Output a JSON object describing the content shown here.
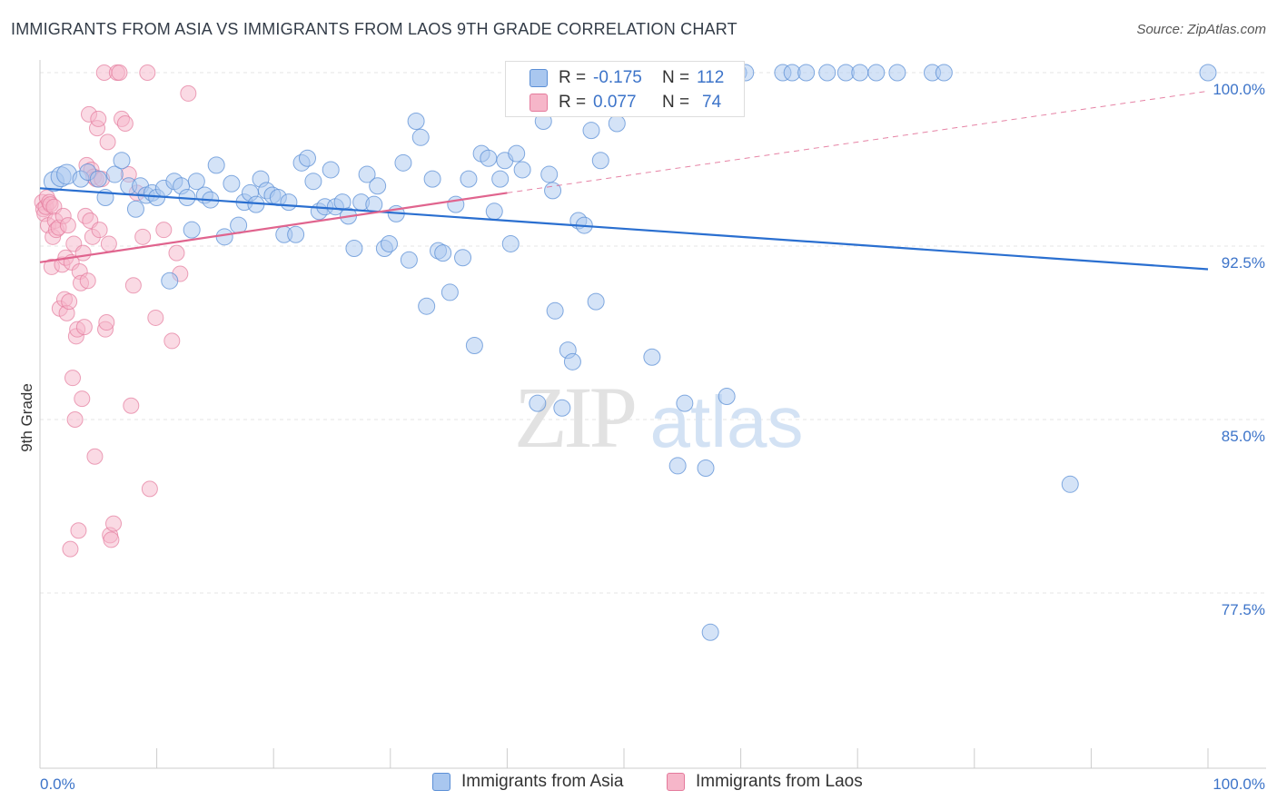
{
  "title": "IMMIGRANTS FROM ASIA VS IMMIGRANTS FROM LAOS 9TH GRADE CORRELATION CHART",
  "source": "Source: ZipAtlas.com",
  "watermark": {
    "zip": "ZIP",
    "atlas": "atlas"
  },
  "colors": {
    "asia_fill": "#a9c7ef",
    "asia_stroke": "#5b8fd6",
    "asia_line": "#2a6fd0",
    "laos_fill": "#f6b6c9",
    "laos_stroke": "#e47a9c",
    "laos_line": "#e0648e",
    "tick_label": "#3d74c9",
    "grid": "#e6e6e6"
  },
  "stats": {
    "r_label": "R =",
    "n_label": "N =",
    "asia": {
      "r": "-0.175",
      "n": "112"
    },
    "laos": {
      "r": "0.077",
      "n": "74"
    }
  },
  "legend": {
    "asia": "Immigrants from Asia",
    "laos": "Immigrants from Laos"
  },
  "chart_data": {
    "type": "scatter",
    "title": "IMMIGRANTS FROM ASIA VS IMMIGRANTS FROM LAOS 9TH GRADE CORRELATION CHART",
    "xlabel": "",
    "ylabel": "9th Grade",
    "xlim": [
      0,
      100
    ],
    "ylim": [
      71.0,
      101.5
    ],
    "x_tick_labels": [
      "0.0%",
      "100.0%"
    ],
    "y_ticks": [
      100.0,
      92.5,
      85.0,
      77.5
    ],
    "y_tick_labels": [
      "100.0%",
      "92.5%",
      "85.0%",
      "77.5%"
    ],
    "grid": true,
    "legend_position": "bottom-center",
    "series": [
      {
        "name": "Immigrants from Asia",
        "trend": {
          "x": [
            0,
            100
          ],
          "y": [
            95.0,
            91.5
          ],
          "dashed_extension": false
        },
        "points": [
          [
            1.2,
            95.3
          ],
          [
            1.8,
            95.5
          ],
          [
            2.3,
            95.6
          ],
          [
            3.5,
            95.4
          ],
          [
            4.1,
            95.7
          ],
          [
            5.0,
            95.4
          ],
          [
            5.6,
            94.6
          ],
          [
            6.4,
            95.6
          ],
          [
            7.0,
            96.2
          ],
          [
            7.6,
            95.1
          ],
          [
            8.2,
            94.1
          ],
          [
            8.6,
            95.1
          ],
          [
            9.1,
            94.7
          ],
          [
            9.6,
            94.8
          ],
          [
            10.0,
            94.6
          ],
          [
            10.6,
            95.0
          ],
          [
            11.1,
            91.0
          ],
          [
            11.5,
            95.3
          ],
          [
            12.1,
            95.1
          ],
          [
            12.6,
            94.6
          ],
          [
            13.0,
            93.2
          ],
          [
            13.4,
            95.3
          ],
          [
            14.1,
            94.7
          ],
          [
            14.6,
            94.5
          ],
          [
            15.1,
            96.0
          ],
          [
            15.8,
            92.9
          ],
          [
            16.4,
            95.2
          ],
          [
            17.0,
            93.4
          ],
          [
            17.5,
            94.4
          ],
          [
            18.0,
            94.8
          ],
          [
            18.5,
            94.3
          ],
          [
            18.9,
            95.4
          ],
          [
            19.4,
            94.9
          ],
          [
            19.9,
            94.7
          ],
          [
            20.4,
            94.6
          ],
          [
            20.9,
            93.0
          ],
          [
            21.3,
            94.4
          ],
          [
            21.9,
            93.0
          ],
          [
            22.4,
            96.1
          ],
          [
            22.9,
            96.3
          ],
          [
            23.4,
            95.3
          ],
          [
            23.9,
            94.0
          ],
          [
            24.4,
            94.2
          ],
          [
            24.9,
            95.8
          ],
          [
            25.3,
            94.2
          ],
          [
            25.9,
            94.4
          ],
          [
            26.4,
            93.8
          ],
          [
            26.9,
            92.4
          ],
          [
            27.5,
            94.4
          ],
          [
            28.0,
            95.6
          ],
          [
            28.6,
            94.3
          ],
          [
            28.9,
            95.1
          ],
          [
            29.5,
            92.4
          ],
          [
            29.9,
            92.6
          ],
          [
            30.5,
            93.9
          ],
          [
            31.1,
            96.1
          ],
          [
            31.6,
            91.9
          ],
          [
            32.2,
            97.9
          ],
          [
            32.6,
            97.2
          ],
          [
            33.1,
            89.9
          ],
          [
            33.6,
            95.4
          ],
          [
            34.1,
            92.3
          ],
          [
            34.5,
            92.2
          ],
          [
            35.1,
            90.5
          ],
          [
            35.6,
            94.3
          ],
          [
            36.2,
            92.0
          ],
          [
            36.7,
            95.4
          ],
          [
            37.2,
            88.2
          ],
          [
            37.8,
            96.5
          ],
          [
            38.4,
            96.3
          ],
          [
            38.9,
            94.0
          ],
          [
            39.4,
            95.4
          ],
          [
            39.8,
            96.2
          ],
          [
            40.3,
            92.6
          ],
          [
            40.8,
            96.5
          ],
          [
            41.3,
            95.8
          ],
          [
            42.6,
            85.7
          ],
          [
            43.1,
            97.9
          ],
          [
            43.6,
            95.6
          ],
          [
            43.9,
            94.9
          ],
          [
            44.1,
            89.7
          ],
          [
            44.7,
            85.5
          ],
          [
            45.2,
            88.0
          ],
          [
            45.6,
            87.5
          ],
          [
            46.1,
            93.6
          ],
          [
            46.6,
            93.4
          ],
          [
            47.2,
            97.5
          ],
          [
            47.6,
            90.1
          ],
          [
            48.0,
            96.2
          ],
          [
            49.4,
            97.8
          ],
          [
            50.4,
            100.0
          ],
          [
            52.4,
            87.7
          ],
          [
            52.8,
            99.0
          ],
          [
            52.2,
            100.0
          ],
          [
            54.6,
            83.0
          ],
          [
            55.2,
            85.7
          ],
          [
            56.2,
            99.1
          ],
          [
            57.0,
            82.9
          ],
          [
            57.4,
            75.8
          ],
          [
            58.8,
            86.0
          ],
          [
            59.8,
            100.0
          ],
          [
            60.4,
            100.0
          ],
          [
            63.6,
            100.0
          ],
          [
            64.4,
            100.0
          ],
          [
            65.6,
            100.0
          ],
          [
            67.4,
            100.0
          ],
          [
            69.0,
            100.0
          ],
          [
            70.2,
            100.0
          ],
          [
            71.6,
            100.0
          ],
          [
            73.4,
            100.0
          ],
          [
            76.4,
            100.0
          ],
          [
            77.4,
            100.0
          ],
          [
            88.2,
            82.2
          ],
          [
            100.0,
            100.0
          ]
        ]
      },
      {
        "name": "Immigrants from Laos",
        "trend": {
          "x": [
            0,
            40
          ],
          "y": [
            91.8,
            94.8
          ],
          "dashed_to": [
            100,
            99.2
          ]
        },
        "points": [
          [
            0.2,
            94.4
          ],
          [
            0.3,
            94.1
          ],
          [
            0.4,
            93.9
          ],
          [
            0.5,
            94.2
          ],
          [
            0.6,
            94.6
          ],
          [
            0.7,
            93.4
          ],
          [
            0.8,
            94.4
          ],
          [
            0.9,
            94.3
          ],
          [
            1.0,
            91.6
          ],
          [
            1.1,
            92.9
          ],
          [
            1.2,
            94.2
          ],
          [
            1.3,
            93.6
          ],
          [
            1.4,
            93.2
          ],
          [
            1.6,
            93.3
          ],
          [
            1.7,
            89.8
          ],
          [
            1.9,
            91.7
          ],
          [
            2.0,
            93.8
          ],
          [
            2.1,
            90.2
          ],
          [
            2.2,
            92.0
          ],
          [
            2.3,
            89.6
          ],
          [
            2.4,
            93.4
          ],
          [
            2.5,
            90.1
          ],
          [
            2.6,
            79.4
          ],
          [
            2.7,
            91.8
          ],
          [
            2.8,
            86.8
          ],
          [
            2.9,
            92.6
          ],
          [
            3.0,
            85.0
          ],
          [
            3.1,
            88.6
          ],
          [
            3.2,
            88.9
          ],
          [
            3.3,
            80.2
          ],
          [
            3.4,
            91.4
          ],
          [
            3.5,
            90.9
          ],
          [
            3.6,
            85.9
          ],
          [
            3.7,
            92.2
          ],
          [
            3.8,
            89.0
          ],
          [
            3.9,
            93.8
          ],
          [
            4.0,
            96.0
          ],
          [
            4.1,
            91.0
          ],
          [
            4.2,
            98.2
          ],
          [
            4.3,
            93.6
          ],
          [
            4.4,
            95.8
          ],
          [
            4.5,
            92.9
          ],
          [
            4.6,
            95.5
          ],
          [
            4.7,
            83.4
          ],
          [
            4.8,
            95.4
          ],
          [
            4.9,
            97.6
          ],
          [
            5.0,
            98.0
          ],
          [
            5.1,
            93.2
          ],
          [
            5.3,
            95.4
          ],
          [
            5.5,
            100.0
          ],
          [
            5.6,
            88.9
          ],
          [
            5.7,
            89.2
          ],
          [
            5.8,
            97.0
          ],
          [
            5.9,
            92.6
          ],
          [
            6.0,
            80.0
          ],
          [
            6.1,
            79.8
          ],
          [
            6.3,
            80.5
          ],
          [
            6.6,
            100.0
          ],
          [
            6.8,
            100.0
          ],
          [
            7.0,
            98.0
          ],
          [
            7.3,
            97.8
          ],
          [
            7.6,
            95.6
          ],
          [
            7.8,
            85.6
          ],
          [
            8.0,
            90.8
          ],
          [
            8.3,
            94.8
          ],
          [
            8.8,
            92.9
          ],
          [
            9.2,
            100.0
          ],
          [
            9.4,
            82.0
          ],
          [
            9.9,
            89.4
          ],
          [
            10.6,
            93.2
          ],
          [
            11.3,
            88.4
          ],
          [
            11.7,
            92.2
          ],
          [
            12.0,
            91.3
          ],
          [
            12.7,
            99.1
          ]
        ]
      }
    ]
  }
}
